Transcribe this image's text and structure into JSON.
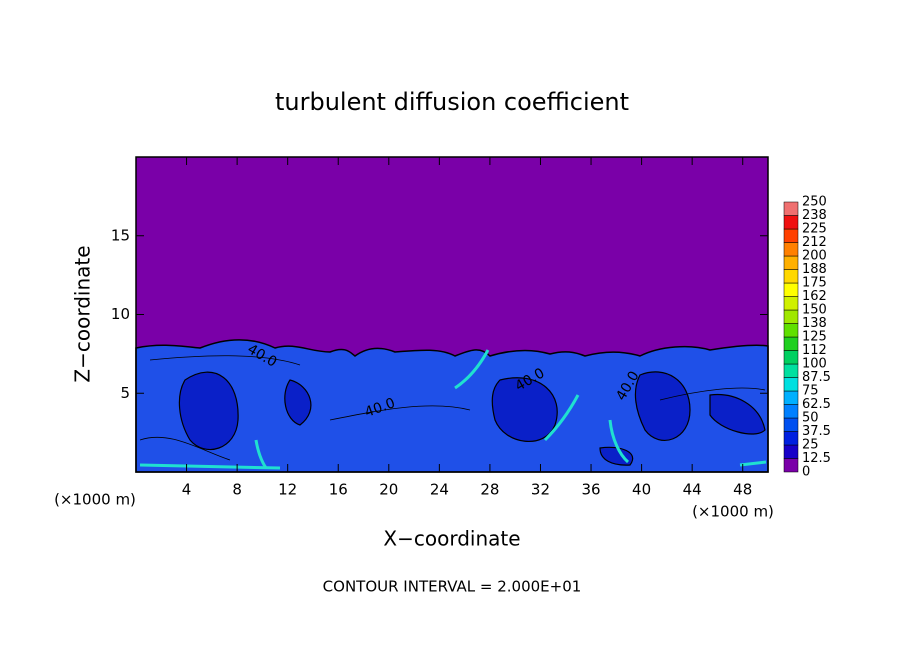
{
  "chart_data": {
    "type": "contour",
    "title": "turbulent diffusion coefficient",
    "x_label": "X−coordinate",
    "y_label": "Z−coordinate",
    "x_unit": "(×1000 m)",
    "y_unit": "(×1000 m)",
    "footer": "CONTOUR INTERVAL = 2.000E+01",
    "contour_labels": [
      "40.0",
      "40.0",
      "40.0",
      "40.0"
    ],
    "xlim": [
      0,
      50
    ],
    "xticks": [
      4,
      8,
      12,
      16,
      20,
      24,
      28,
      32,
      36,
      40,
      44,
      48
    ],
    "ylim": [
      0,
      20
    ],
    "yticks": [
      5,
      10,
      15
    ],
    "colorbar": {
      "levels": [
        0,
        12.5,
        25,
        37.5,
        50,
        62.5,
        75,
        87.5,
        100,
        {
          "value": 112.5,
          "label": "112"
        },
        125,
        {
          "value": 137.5,
          "label": "138"
        },
        150,
        {
          "value": 162.5,
          "label": "162"
        },
        175,
        {
          "value": 187.5,
          "label": "188"
        },
        200,
        {
          "value": 212.5,
          "label": "212"
        },
        225,
        {
          "value": 237.5,
          "label": "238"
        },
        250
      ],
      "colors": [
        "#7a00a8",
        "#1800c8",
        "#0020e0",
        "#0050f0",
        "#0080ff",
        "#00b0ff",
        "#00e0e0",
        "#00e0a0",
        "#00d060",
        "#20d020",
        "#60e000",
        "#a0e800",
        "#d0f000",
        "#ffff00",
        "#ffd800",
        "#ffb000",
        "#ff8000",
        "#ff4000",
        "#f01010",
        "#f07070"
      ]
    }
  }
}
